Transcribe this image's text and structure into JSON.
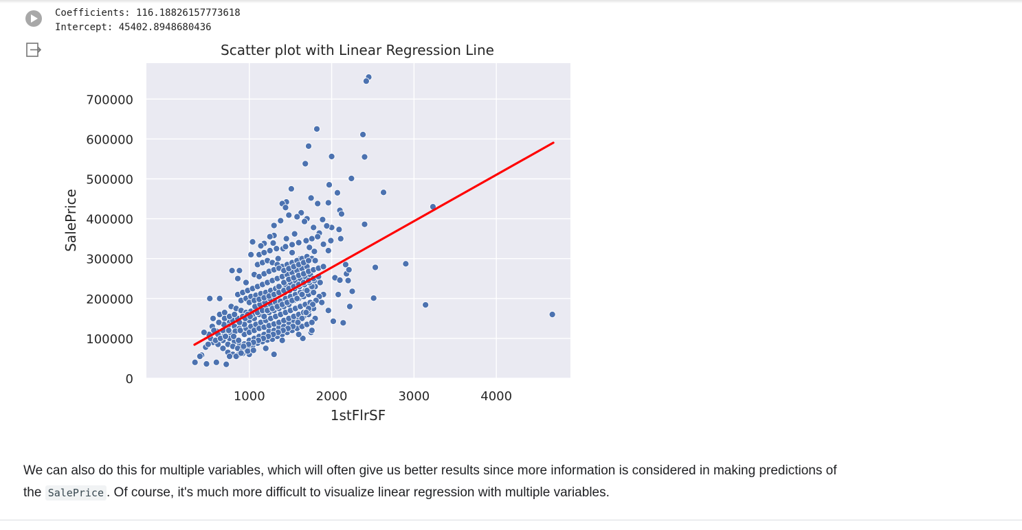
{
  "output": {
    "lines": [
      "Coefficients: 116.18826157773618",
      "Intercept: 45402.8948680436"
    ]
  },
  "chart_data": {
    "type": "scatter",
    "title": "Scatter plot with Linear Regression Line",
    "xlabel": "1stFlrSF",
    "ylabel": "SalePrice",
    "xlim": [
      -250,
      4900
    ],
    "ylim": [
      0,
      790000
    ],
    "xticks": [
      1000,
      2000,
      3000,
      4000
    ],
    "yticks": [
      0,
      100000,
      200000,
      300000,
      400000,
      500000,
      600000,
      700000
    ],
    "xtick_labels": [
      "1000",
      "2000",
      "3000",
      "4000"
    ],
    "ytick_labels": [
      "0",
      "100000",
      "200000",
      "300000",
      "400000",
      "500000",
      "600000",
      "700000"
    ],
    "grid": true,
    "point_color": "#4c72b0",
    "line_color": "#ff0000",
    "background": "#eaeaf2",
    "regression_line": {
      "x": [
        334,
        4692
      ],
      "y": [
        84208,
        590558
      ]
    },
    "points": [
      [
        2450,
        755000
      ],
      [
        2420,
        745000
      ],
      [
        1820,
        625000
      ],
      [
        2380,
        611000
      ],
      [
        1720,
        582000
      ],
      [
        2000,
        556000
      ],
      [
        2400,
        555000
      ],
      [
        1680,
        538000
      ],
      [
        2240,
        501000
      ],
      [
        1510,
        475000
      ],
      [
        2630,
        466000
      ],
      [
        1970,
        485000
      ],
      [
        2070,
        465000
      ],
      [
        1450,
        442000
      ],
      [
        1400,
        438000
      ],
      [
        1750,
        452000
      ],
      [
        1830,
        438000
      ],
      [
        1960,
        440000
      ],
      [
        1440,
        428000
      ],
      [
        3230,
        430000
      ],
      [
        1630,
        415000
      ],
      [
        2100,
        421000
      ],
      [
        1480,
        409000
      ],
      [
        1580,
        405000
      ],
      [
        1700,
        400000
      ],
      [
        1890,
        398000
      ],
      [
        2120,
        412000
      ],
      [
        1380,
        395000
      ],
      [
        1670,
        393000
      ],
      [
        2400,
        386000
      ],
      [
        1300,
        383000
      ],
      [
        1780,
        378000
      ],
      [
        2000,
        378000
      ],
      [
        1940,
        382000
      ],
      [
        2090,
        373000
      ],
      [
        1850,
        364000
      ],
      [
        1550,
        362000
      ],
      [
        1300,
        358000
      ],
      [
        2110,
        350000
      ],
      [
        1990,
        345000
      ],
      [
        1250,
        355000
      ],
      [
        1450,
        350000
      ],
      [
        1040,
        342000
      ],
      [
        1180,
        338000
      ],
      [
        1600,
        341000
      ],
      [
        1290,
        339000
      ],
      [
        1900,
        336000
      ],
      [
        1140,
        332000
      ],
      [
        1730,
        328000
      ],
      [
        1410,
        325000
      ],
      [
        1020,
        310000
      ],
      [
        1520,
        315000
      ],
      [
        1790,
        318000
      ],
      [
        1960,
        320000
      ],
      [
        1350,
        300000
      ],
      [
        1620,
        300000
      ],
      [
        2530,
        278000
      ],
      [
        2900,
        287000
      ],
      [
        2170,
        285000
      ],
      [
        2040,
        252000
      ],
      [
        2100,
        246000
      ],
      [
        2200,
        245000
      ],
      [
        2180,
        262000
      ],
      [
        2210,
        272000
      ],
      [
        2250,
        218000
      ],
      [
        2080,
        210000
      ],
      [
        2510,
        201000
      ],
      [
        3140,
        184000
      ],
      [
        2220,
        180000
      ],
      [
        4680,
        160000
      ],
      [
        2020,
        143000
      ],
      [
        2140,
        139000
      ],
      [
        1880,
        190000
      ],
      [
        1960,
        170000
      ],
      [
        1800,
        150000
      ],
      [
        1750,
        115000
      ],
      [
        1650,
        100000
      ],
      [
        1300,
        60000
      ],
      [
        1000,
        60000
      ],
      [
        720,
        35000
      ],
      [
        480,
        36000
      ],
      [
        340,
        40000
      ],
      [
        420,
        58000
      ],
      [
        600,
        40000
      ],
      [
        470,
        78000
      ],
      [
        520,
        200000
      ],
      [
        640,
        200000
      ],
      [
        790,
        270000
      ],
      [
        880,
        270000
      ],
      [
        860,
        250000
      ],
      [
        960,
        240000
      ],
      [
        560,
        150000
      ],
      [
        550,
        130000
      ],
      [
        600,
        118000
      ],
      [
        700,
        110000
      ],
      [
        760,
        100000
      ],
      [
        820,
        92000
      ],
      [
        880,
        88000
      ],
      [
        940,
        86000
      ],
      [
        1000,
        95000
      ],
      [
        1060,
        100000
      ],
      [
        1120,
        105000
      ],
      [
        1180,
        110000
      ],
      [
        1240,
        118000
      ],
      [
        1300,
        120000
      ],
      [
        1360,
        128000
      ],
      [
        1420,
        130000
      ],
      [
        1480,
        140000
      ],
      [
        1540,
        145000
      ],
      [
        1600,
        150000
      ],
      [
        1660,
        155000
      ],
      [
        1720,
        160000
      ],
      [
        780,
        180000
      ],
      [
        840,
        175000
      ],
      [
        900,
        170000
      ],
      [
        960,
        165000
      ],
      [
        1020,
        168000
      ],
      [
        1080,
        170000
      ],
      [
        1140,
        175000
      ],
      [
        1200,
        178000
      ],
      [
        1260,
        185000
      ],
      [
        1320,
        190000
      ],
      [
        1380,
        193000
      ],
      [
        1440,
        200000
      ],
      [
        1500,
        205000
      ],
      [
        1560,
        210000
      ],
      [
        1620,
        215000
      ],
      [
        1680,
        220000
      ],
      [
        1740,
        225000
      ],
      [
        1800,
        230000
      ],
      [
        860,
        210000
      ],
      [
        920,
        215000
      ],
      [
        980,
        220000
      ],
      [
        1040,
        225000
      ],
      [
        1100,
        230000
      ],
      [
        1160,
        235000
      ],
      [
        1220,
        240000
      ],
      [
        1280,
        245000
      ],
      [
        1340,
        250000
      ],
      [
        1400,
        255000
      ],
      [
        1460,
        260000
      ],
      [
        1520,
        265000
      ],
      [
        1580,
        270000
      ],
      [
        1640,
        275000
      ],
      [
        1700,
        280000
      ],
      [
        960,
        125000
      ],
      [
        1020,
        130000
      ],
      [
        1080,
        135000
      ],
      [
        1140,
        140000
      ],
      [
        1200,
        145000
      ],
      [
        1260,
        150000
      ],
      [
        1320,
        155000
      ],
      [
        1380,
        160000
      ],
      [
        1440,
        165000
      ],
      [
        1500,
        170000
      ],
      [
        1560,
        175000
      ],
      [
        1620,
        180000
      ],
      [
        1680,
        185000
      ],
      [
        1740,
        190000
      ],
      [
        640,
        160000
      ],
      [
        700,
        165000
      ],
      [
        760,
        140000
      ],
      [
        820,
        130000
      ],
      [
        880,
        125000
      ],
      [
        940,
        135000
      ],
      [
        1000,
        145000
      ],
      [
        1060,
        150000
      ],
      [
        1120,
        160000
      ],
      [
        1180,
        155000
      ],
      [
        1240,
        165000
      ],
      [
        1300,
        170000
      ],
      [
        1360,
        175000
      ],
      [
        1420,
        180000
      ],
      [
        1480,
        185000
      ],
      [
        1540,
        195000
      ],
      [
        1600,
        200000
      ],
      [
        1660,
        205000
      ],
      [
        1720,
        210000
      ],
      [
        1780,
        215000
      ],
      [
        680,
        95000
      ],
      [
        740,
        85000
      ],
      [
        800,
        80000
      ],
      [
        860,
        75000
      ],
      [
        920,
        70000
      ],
      [
        980,
        78000
      ],
      [
        1040,
        82000
      ],
      [
        1100,
        88000
      ],
      [
        1160,
        92000
      ],
      [
        1220,
        96000
      ],
      [
        1280,
        98000
      ],
      [
        1340,
        105000
      ],
      [
        1400,
        110000
      ],
      [
        1460,
        115000
      ],
      [
        1520,
        120000
      ],
      [
        1580,
        125000
      ],
      [
        1640,
        130000
      ],
      [
        1700,
        135000
      ],
      [
        1760,
        140000
      ],
      [
        1100,
        285000
      ],
      [
        1160,
        290000
      ],
      [
        1220,
        295000
      ],
      [
        1280,
        290000
      ],
      [
        1340,
        285000
      ],
      [
        1400,
        280000
      ],
      [
        1460,
        285000
      ],
      [
        1520,
        290000
      ],
      [
        1580,
        295000
      ],
      [
        1640,
        300000
      ],
      [
        1700,
        305000
      ],
      [
        1760,
        300000
      ],
      [
        1800,
        295000
      ],
      [
        1060,
        260000
      ],
      [
        1120,
        255000
      ],
      [
        1180,
        262000
      ],
      [
        1240,
        268000
      ],
      [
        1300,
        272000
      ],
      [
        1360,
        276000
      ],
      [
        1420,
        270000
      ],
      [
        1480,
        275000
      ],
      [
        1540,
        280000
      ],
      [
        1600,
        285000
      ],
      [
        1660,
        290000
      ],
      [
        1720,
        295000
      ],
      [
        620,
        110000
      ],
      [
        680,
        120000
      ],
      [
        740,
        130000
      ],
      [
        800,
        145000
      ],
      [
        860,
        150000
      ],
      [
        920,
        155000
      ],
      [
        980,
        160000
      ],
      [
        1040,
        160000
      ],
      [
        1100,
        165000
      ],
      [
        1160,
        170000
      ],
      [
        1220,
        170000
      ],
      [
        1280,
        175000
      ],
      [
        1340,
        180000
      ],
      [
        1400,
        185000
      ],
      [
        1460,
        190000
      ],
      [
        1520,
        195000
      ],
      [
        1580,
        200000
      ],
      [
        1640,
        210000
      ],
      [
        1700,
        220000
      ],
      [
        1760,
        230000
      ],
      [
        900,
        195000
      ],
      [
        960,
        200000
      ],
      [
        1020,
        205000
      ],
      [
        1080,
        208000
      ],
      [
        1140,
        212000
      ],
      [
        1200,
        215000
      ],
      [
        1260,
        220000
      ],
      [
        1320,
        225000
      ],
      [
        1380,
        230000
      ],
      [
        1440,
        235000
      ],
      [
        1500,
        240000
      ],
      [
        1560,
        245000
      ],
      [
        1620,
        250000
      ],
      [
        1680,
        255000
      ],
      [
        1740,
        260000
      ],
      [
        700,
        150000
      ],
      [
        760,
        155000
      ],
      [
        820,
        160000
      ],
      [
        880,
        140000
      ],
      [
        940,
        110000
      ],
      [
        1000,
        115000
      ],
      [
        1060,
        120000
      ],
      [
        1120,
        125000
      ],
      [
        1180,
        128000
      ],
      [
        1240,
        132000
      ],
      [
        1300,
        136000
      ],
      [
        1360,
        140000
      ],
      [
        1420,
        145000
      ],
      [
        1480,
        150000
      ],
      [
        1540,
        155000
      ],
      [
        1600,
        160000
      ],
      [
        1660,
        165000
      ],
      [
        1720,
        170000
      ],
      [
        1780,
        175000
      ],
      [
        560,
        90000
      ],
      [
        620,
        85000
      ],
      [
        680,
        75000
      ],
      [
        740,
        65000
      ],
      [
        800,
        60000
      ],
      [
        860,
        58000
      ],
      [
        920,
        62000
      ],
      [
        980,
        68000
      ],
      [
        500,
        85000
      ],
      [
        530,
        100000
      ],
      [
        590,
        95000
      ],
      [
        650,
        100000
      ],
      [
        710,
        105000
      ],
      [
        770,
        115000
      ],
      [
        830,
        118000
      ],
      [
        890,
        120000
      ],
      [
        950,
        150000
      ],
      [
        1010,
        155000
      ],
      [
        1070,
        180000
      ],
      [
        1130,
        185000
      ],
      [
        1190,
        190000
      ],
      [
        1250,
        200000
      ],
      [
        1310,
        205000
      ],
      [
        1370,
        210000
      ],
      [
        1430,
        215000
      ],
      [
        1490,
        220000
      ],
      [
        1550,
        225000
      ],
      [
        1610,
        230000
      ],
      [
        1670,
        235000
      ],
      [
        1730,
        240000
      ],
      [
        1790,
        245000
      ],
      [
        1000,
        190000
      ],
      [
        1060,
        195000
      ],
      [
        1120,
        198000
      ],
      [
        1180,
        202000
      ],
      [
        1240,
        206000
      ],
      [
        1300,
        210000
      ],
      [
        1360,
        215000
      ],
      [
        1420,
        220000
      ],
      [
        1480,
        225000
      ],
      [
        1540,
        230000
      ],
      [
        1600,
        235000
      ],
      [
        1660,
        240000
      ],
      [
        1720,
        245000
      ],
      [
        1780,
        250000
      ],
      [
        1840,
        255000
      ],
      [
        1120,
        310000
      ],
      [
        1180,
        315000
      ],
      [
        1250,
        320000
      ],
      [
        1330,
        325000
      ],
      [
        1440,
        330000
      ],
      [
        1520,
        335000
      ],
      [
        1600,
        340000
      ],
      [
        1690,
        345000
      ],
      [
        1760,
        350000
      ],
      [
        1830,
        355000
      ],
      [
        1360,
        230000
      ],
      [
        1420,
        240000
      ],
      [
        1480,
        248000
      ],
      [
        1540,
        252000
      ],
      [
        1600,
        258000
      ],
      [
        1660,
        262000
      ],
      [
        1720,
        268000
      ],
      [
        1780,
        272000
      ],
      [
        1840,
        276000
      ],
      [
        1900,
        280000
      ],
      [
        1860,
        240000
      ],
      [
        1900,
        210000
      ],
      [
        1850,
        205000
      ],
      [
        1810,
        195000
      ],
      [
        1770,
        185000
      ],
      [
        1720,
        175000
      ],
      [
        1690,
        165000
      ],
      [
        1640,
        150000
      ],
      [
        1590,
        140000
      ],
      [
        1530,
        130000
      ],
      [
        1470,
        125000
      ],
      [
        1410,
        120000
      ],
      [
        1350,
        115000
      ],
      [
        1290,
        110000
      ],
      [
        1230,
        105000
      ],
      [
        1170,
        100000
      ],
      [
        1110,
        95000
      ],
      [
        1050,
        90000
      ],
      [
        990,
        85000
      ],
      [
        930,
        80000
      ],
      [
        870,
        95000
      ],
      [
        810,
        105000
      ],
      [
        750,
        120000
      ],
      [
        690,
        135000
      ],
      [
        630,
        140000
      ],
      [
        570,
        120000
      ],
      [
        510,
        110000
      ],
      [
        450,
        115000
      ],
      [
        400,
        55000
      ],
      [
        760,
        55000
      ],
      [
        840,
        55000
      ],
      [
        900,
        63000
      ],
      [
        1050,
        70000
      ],
      [
        1200,
        75000
      ],
      [
        1400,
        95000
      ],
      [
        1600,
        110000
      ],
      [
        1760,
        120000
      ]
    ]
  },
  "markdown": {
    "line1": "We can also do this for multiple variables, which will often give us better results since more information is considered in making predictions of",
    "line2_prefix": "the ",
    "code": "SalePrice",
    "line2_suffix": ". Of course, it's much more difficult to visualize linear regression with multiple variables."
  }
}
